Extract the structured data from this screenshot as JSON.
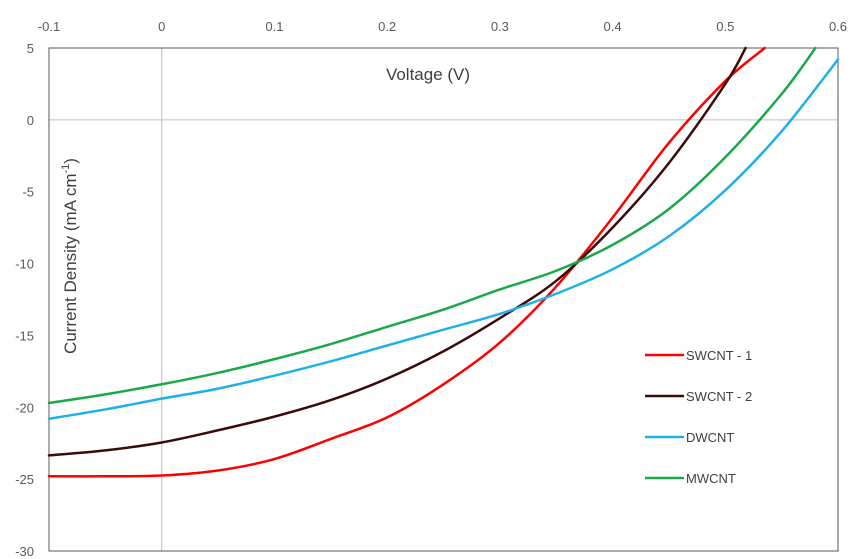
{
  "chart_data": {
    "type": "line",
    "xlabel": "Voltage (V)",
    "ylabel_main": "Current Density (mA cm",
    "ylabel_sup": "-1",
    "ylabel_close": ")",
    "xlim": [
      -0.1,
      0.6
    ],
    "ylim": [
      -30,
      5
    ],
    "x_ticks": [
      -0.1,
      0,
      0.1,
      0.2,
      0.3,
      0.4,
      0.5,
      0.6
    ],
    "x_tick_labels": [
      "-0.1",
      "0",
      "0.1",
      "0.2",
      "0.3",
      "0.4",
      "0.5",
      "0.6"
    ],
    "y_ticks": [
      5,
      0,
      -5,
      -10,
      -15,
      -20,
      -25,
      -30
    ],
    "y_tick_labels": [
      "5",
      "0",
      "-5",
      "-10",
      "-15",
      "-20",
      "-25",
      "-30"
    ],
    "legend_position": "right",
    "series": [
      {
        "name": "SWCNT - 1",
        "color": "#ff0000",
        "points": [
          [
            -0.1,
            -24.8
          ],
          [
            -0.05,
            -24.8
          ],
          [
            0,
            -24.75
          ],
          [
            0.05,
            -24.4
          ],
          [
            0.1,
            -23.6
          ],
          [
            0.15,
            -22.2
          ],
          [
            0.2,
            -20.7
          ],
          [
            0.25,
            -18.4
          ],
          [
            0.3,
            -15.5
          ],
          [
            0.35,
            -11.6
          ],
          [
            0.4,
            -6.8
          ],
          [
            0.45,
            -1.6
          ],
          [
            0.5,
            2.7
          ],
          [
            0.535,
            5.0
          ]
        ]
      },
      {
        "name": "SWCNT - 2",
        "color": "#3b0a0a",
        "points": [
          [
            -0.1,
            -23.35
          ],
          [
            -0.05,
            -23.0
          ],
          [
            0,
            -22.45
          ],
          [
            0.05,
            -21.6
          ],
          [
            0.1,
            -20.65
          ],
          [
            0.15,
            -19.5
          ],
          [
            0.2,
            -18.0
          ],
          [
            0.25,
            -16.1
          ],
          [
            0.3,
            -13.8
          ],
          [
            0.35,
            -11.2
          ],
          [
            0.4,
            -7.5
          ],
          [
            0.45,
            -3.0
          ],
          [
            0.5,
            2.5
          ],
          [
            0.518,
            5.0
          ]
        ]
      },
      {
        "name": "DWCNT",
        "color": "#1fb0e8",
        "points": [
          [
            -0.1,
            -20.8
          ],
          [
            -0.05,
            -20.15
          ],
          [
            0,
            -19.4
          ],
          [
            0.05,
            -18.7
          ],
          [
            0.1,
            -17.8
          ],
          [
            0.15,
            -16.8
          ],
          [
            0.2,
            -15.7
          ],
          [
            0.25,
            -14.6
          ],
          [
            0.3,
            -13.5
          ],
          [
            0.35,
            -12.1
          ],
          [
            0.4,
            -10.4
          ],
          [
            0.45,
            -8.1
          ],
          [
            0.5,
            -4.9
          ],
          [
            0.55,
            -0.8
          ],
          [
            0.6,
            4.2
          ]
        ]
      },
      {
        "name": "MWCNT",
        "color": "#1aa84a",
        "points": [
          [
            -0.1,
            -19.7
          ],
          [
            -0.05,
            -19.1
          ],
          [
            0,
            -18.4
          ],
          [
            0.05,
            -17.6
          ],
          [
            0.1,
            -16.65
          ],
          [
            0.15,
            -15.6
          ],
          [
            0.2,
            -14.4
          ],
          [
            0.25,
            -13.2
          ],
          [
            0.3,
            -11.8
          ],
          [
            0.35,
            -10.5
          ],
          [
            0.4,
            -8.7
          ],
          [
            0.45,
            -6.2
          ],
          [
            0.5,
            -2.6
          ],
          [
            0.55,
            1.8
          ],
          [
            0.58,
            5.0
          ]
        ]
      }
    ]
  }
}
